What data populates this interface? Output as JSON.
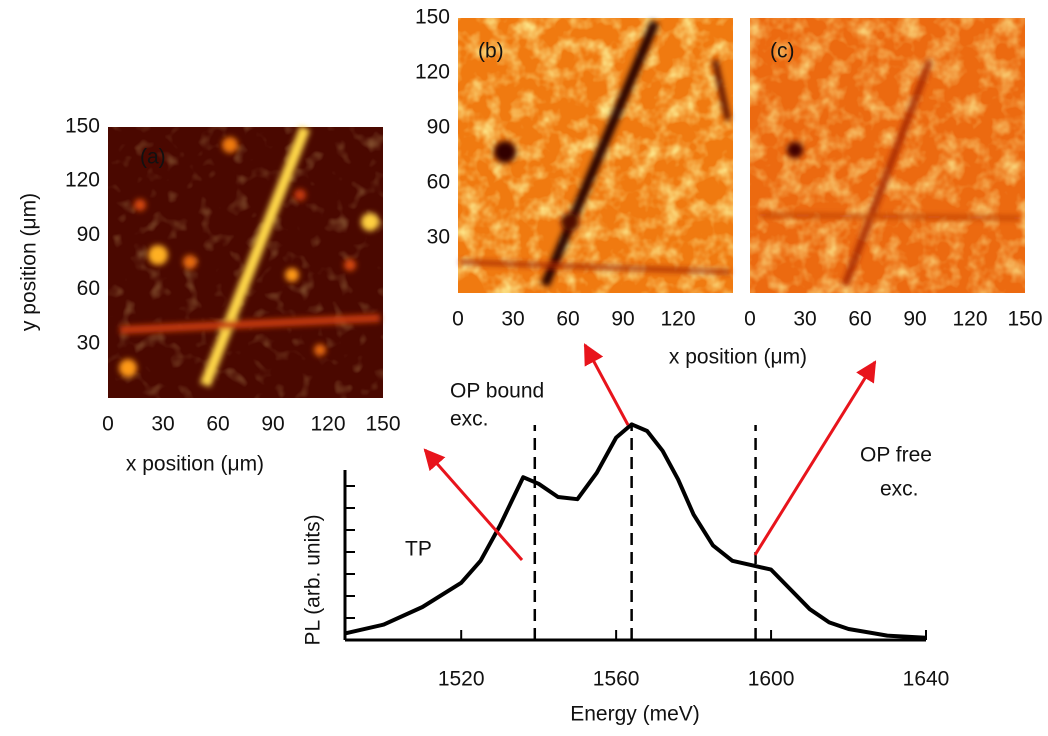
{
  "chart_data": [
    {
      "type": "heatmap",
      "label": "(a)",
      "xlabel": "x position (μm)",
      "ylabel": "y position (μm)",
      "xlim": [
        0,
        150
      ],
      "ylim": [
        0,
        150
      ],
      "xticks": [
        0,
        30,
        60,
        90,
        120,
        150
      ],
      "yticks": [
        30,
        60,
        90,
        120,
        150
      ]
    },
    {
      "type": "heatmap",
      "label": "(b)",
      "xlabel": "x position (μm)",
      "xlim": [
        0,
        150
      ],
      "ylim": [
        0,
        150
      ],
      "xticks": [
        0,
        30,
        60,
        90,
        120
      ],
      "yticks": [
        30,
        60,
        90,
        120,
        150
      ]
    },
    {
      "type": "heatmap",
      "label": "(c)",
      "xlim": [
        0,
        150
      ],
      "ylim": [
        0,
        150
      ],
      "xticks": [
        0,
        30,
        60,
        90,
        120,
        150
      ],
      "yticks": []
    },
    {
      "type": "line",
      "xlabel": "Energy (meV)",
      "ylabel": "PL (arb. units)",
      "xlim": [
        1490,
        1640
      ],
      "ylim": [
        0,
        1
      ],
      "xticks": [
        1520,
        1560,
        1600,
        1640
      ],
      "yticks": [
        0.1,
        0.2,
        0.3,
        0.4,
        0.5,
        0.6,
        0.7,
        0.8,
        0.9,
        1.0
      ],
      "x": [
        1490,
        1500,
        1510,
        1520,
        1525,
        1530,
        1536,
        1540,
        1545,
        1550,
        1555,
        1560,
        1564,
        1568,
        1572,
        1576,
        1580,
        1585,
        1590,
        1595,
        1600,
        1605,
        1610,
        1615,
        1620,
        1630,
        1640
      ],
      "series": [
        {
          "color": "#000000",
          "values": [
            0.03,
            0.07,
            0.15,
            0.26,
            0.36,
            0.52,
            0.74,
            0.71,
            0.65,
            0.64,
            0.76,
            0.92,
            0.98,
            0.95,
            0.86,
            0.73,
            0.57,
            0.43,
            0.36,
            0.34,
            0.32,
            0.23,
            0.14,
            0.08,
            0.05,
            0.02,
            0.01
          ]
        }
      ],
      "peak_markers": [
        1539,
        1564,
        1596
      ],
      "annotations": {
        "bound": [
          "OP bound",
          "exc."
        ],
        "tp": "TP",
        "free": [
          "OP free",
          "exc."
        ]
      },
      "arrow_color": "#e8141c"
    }
  ]
}
